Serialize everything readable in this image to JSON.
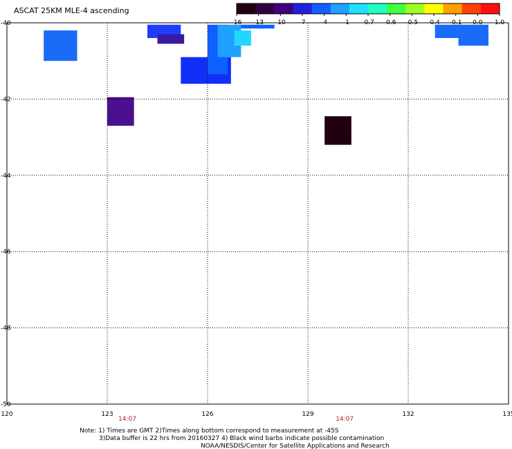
{
  "title": "ASCAT 25KM MLE-4 ascending",
  "colorbar": {
    "labels": [
      "-16",
      "-13",
      "-10",
      "-7",
      "-4",
      "-1",
      "-0.7",
      "-0.6",
      "-0.5",
      "-0.4",
      "-0.1",
      "0.0",
      "1.0"
    ],
    "colors": [
      "#200010",
      "#300040",
      "#400080",
      "#2020e0",
      "#1060ff",
      "#20a0ff",
      "#20e0ff",
      "#20ffc0",
      "#40ff40",
      "#a0ff20",
      "#ffff00",
      "#ffa000",
      "#ff4000",
      "#ff1010"
    ]
  },
  "axes": {
    "x_ticks": [
      "120",
      "123",
      "126",
      "129",
      "132",
      "135"
    ],
    "y_ticks": [
      "-40",
      "-42",
      "-44",
      "-46",
      "-48",
      "-50"
    ],
    "xlim": [
      120,
      135
    ],
    "ylim": [
      -50,
      -40
    ]
  },
  "times": [
    {
      "label": "14:07",
      "lon": 123.6
    },
    {
      "label": "14:07",
      "lon": 130.1
    }
  ],
  "chart_data": {
    "type": "heatmap",
    "title": "ASCAT 25KM MLE-4 ascending",
    "xlim": [
      120,
      135
    ],
    "ylim": [
      -50,
      -40
    ],
    "grid": true,
    "cells": [
      {
        "lon": [
          121.1,
          122.1
        ],
        "lat": [
          -41.0,
          -40.2
        ],
        "color": "#1a6cf8"
      },
      {
        "lon": [
          124.2,
          125.2
        ],
        "lat": [
          -40.4,
          -40.05
        ],
        "color": "#1f3df8"
      },
      {
        "lon": [
          124.5,
          125.3
        ],
        "lat": [
          -40.55,
          -40.3
        ],
        "color": "#3a1aa0"
      },
      {
        "lon": [
          125.2,
          126.7
        ],
        "lat": [
          -41.6,
          -40.9
        ],
        "color": "#1030f8"
      },
      {
        "lon": [
          126.0,
          126.6
        ],
        "lat": [
          -41.35,
          -40.05
        ],
        "color": "#1060ff"
      },
      {
        "lon": [
          126.3,
          127.0
        ],
        "lat": [
          -40.9,
          -40.05
        ],
        "color": "#20a0ff"
      },
      {
        "lon": [
          126.8,
          127.3
        ],
        "lat": [
          -40.6,
          -40.2
        ],
        "color": "#20d8ff"
      },
      {
        "lon": [
          127.0,
          128.0
        ],
        "lat": [
          -40.15,
          -40.05
        ],
        "color": "#1060ff"
      },
      {
        "lon": [
          123.0,
          123.8
        ],
        "lat": [
          -42.7,
          -41.95
        ],
        "color": "#4a1090"
      },
      {
        "lon": [
          129.5,
          130.3
        ],
        "lat": [
          -43.2,
          -42.45
        ],
        "color": "#200010"
      },
      {
        "lon": [
          132.8,
          134.4
        ],
        "lat": [
          -40.4,
          -40.05
        ],
        "color": "#1a6cf8"
      },
      {
        "lon": [
          133.5,
          134.4
        ],
        "lat": [
          -40.6,
          -40.3
        ],
        "color": "#1a6cf8"
      }
    ]
  },
  "notes": {
    "line1": "Note: 1) Times are GMT 2)Times along bottom correspond to measurement at -45S",
    "line2": "3)Data buffer is 22 hrs from 20160327 4) Black wind barbs indicate possible contamination",
    "line3": "NOAA/NESDIS/Center for Satellite Applications and Research"
  }
}
